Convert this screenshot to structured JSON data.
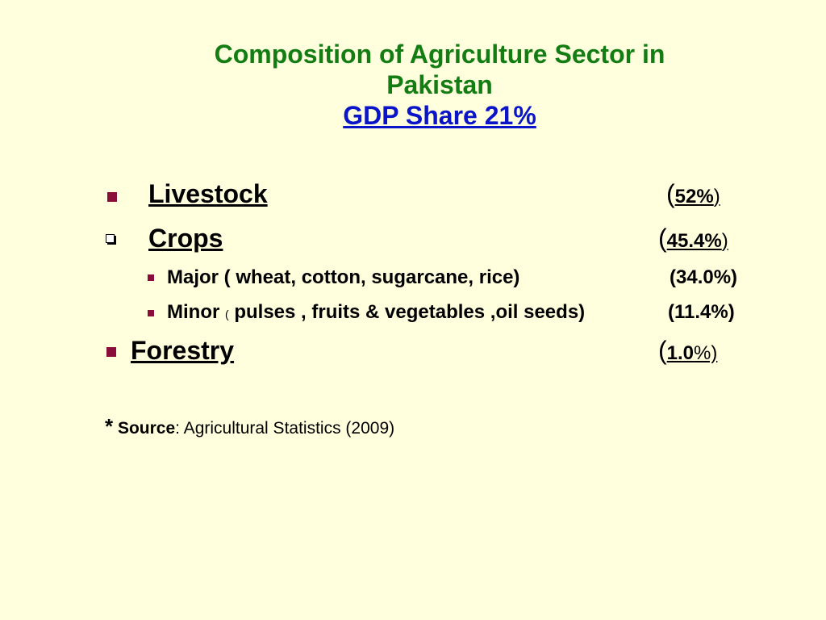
{
  "title": {
    "line1": "Composition of Agriculture Sector in",
    "line2": "Pakistan",
    "line3": "GDP Share 21%"
  },
  "items": [
    {
      "label": "Livestock",
      "open": "(",
      "value": "52%",
      "close": ")"
    },
    {
      "label": "Crops ",
      "open": "(",
      "value": "45.4%",
      "close": ")"
    },
    {
      "label": "Forestry",
      "open": "(",
      "value": "1.0",
      "close": "%)"
    }
  ],
  "sub_items": [
    {
      "label": "Major ( wheat, cotton, sugarcane, rice)",
      "value": "(34.0%)"
    },
    {
      "prefix": "Minor ",
      "paren": "(",
      "label": " pulses , fruits & vegetables ,oil seeds)",
      "value": "(11.4%)"
    }
  ],
  "source": {
    "star": "*",
    "label": "Source",
    "text": ": Agricultural Statistics (2009)"
  },
  "colors": {
    "title": "#137c13",
    "gdp": "#0a14c8",
    "bullet": "#8b0d3a",
    "background": "#ffffdd"
  }
}
